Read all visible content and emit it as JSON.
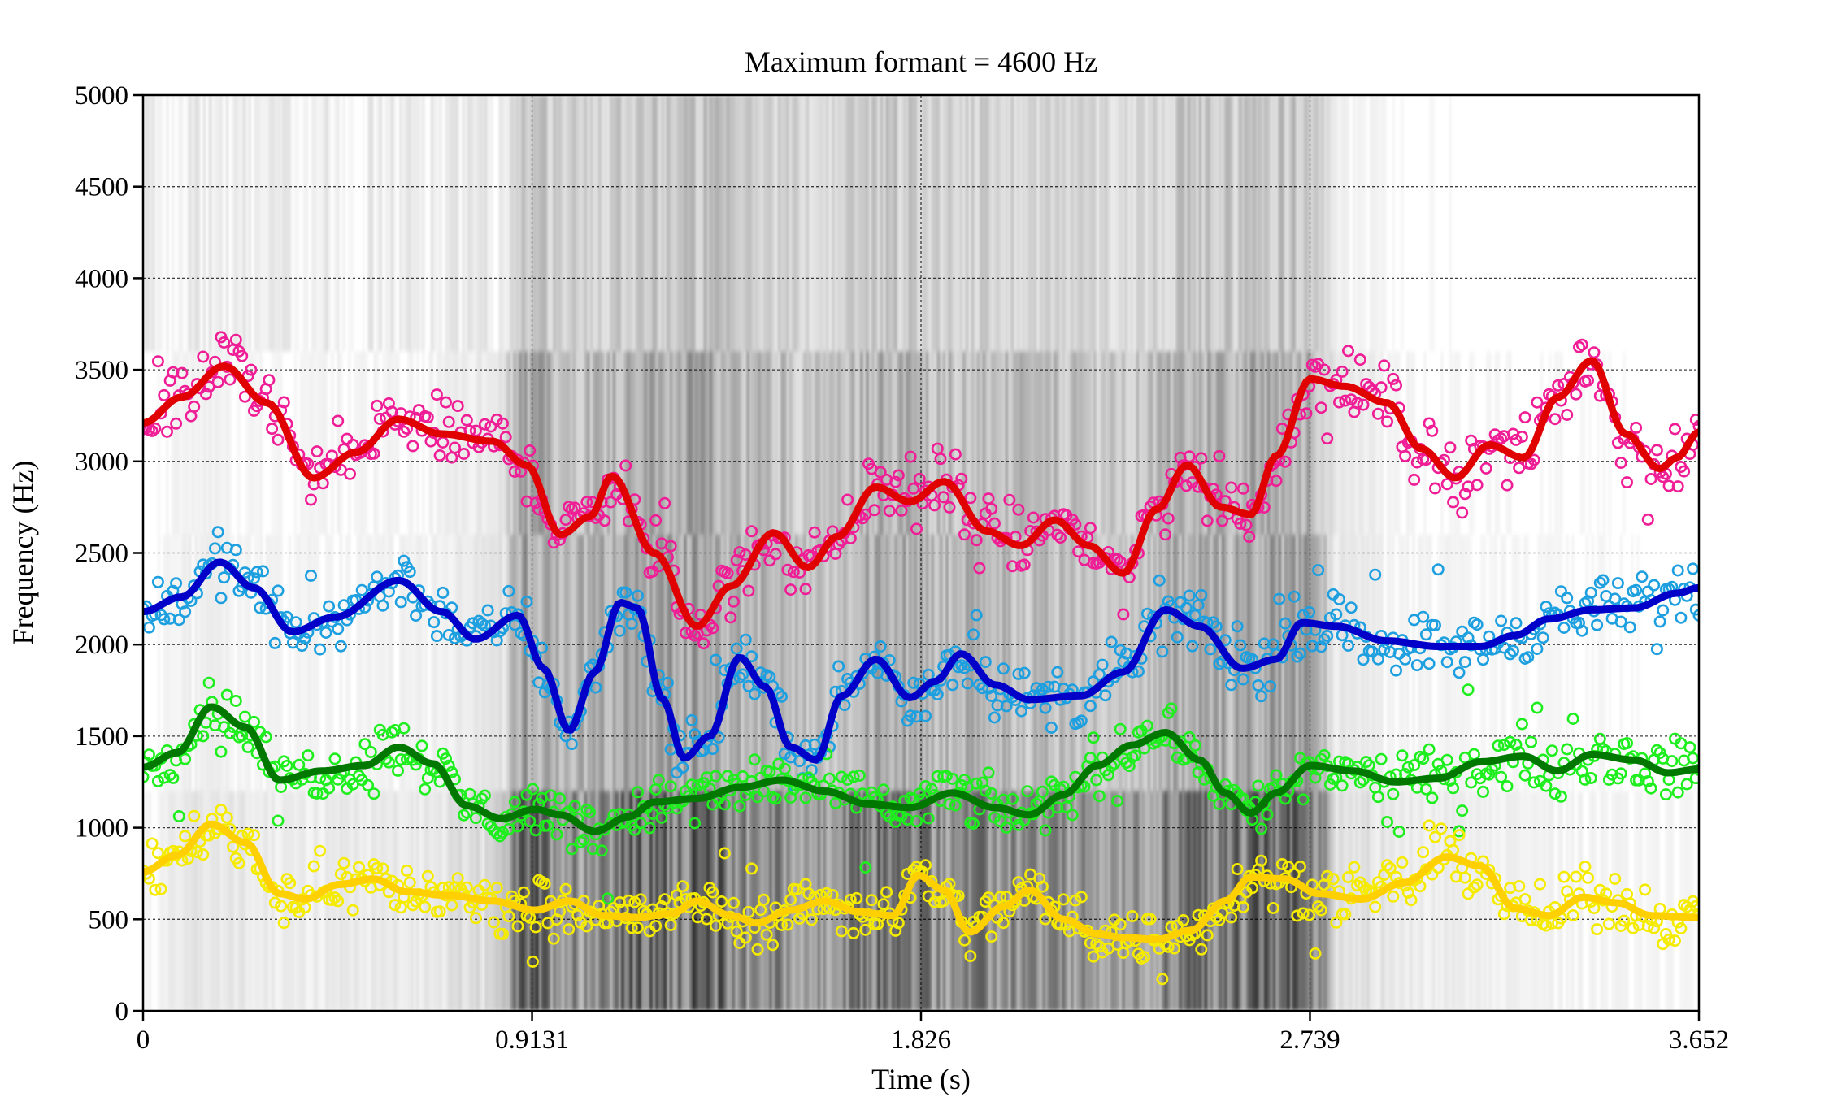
{
  "chart_data": {
    "type": "scatter",
    "title": "Maximum formant = 4600 Hz",
    "xlabel": "Time (s)",
    "ylabel": "Frequency (Hz)",
    "xlim": [
      0,
      3.652
    ],
    "ylim": [
      0,
      5000
    ],
    "xticks": [
      "0",
      "0.9131",
      "1.826",
      "2.739",
      "3.652"
    ],
    "xtick_values": [
      0,
      0.9131,
      1.826,
      2.739,
      3.652
    ],
    "yticks": [
      "0",
      "500",
      "1000",
      "1500",
      "2000",
      "2500",
      "3000",
      "3500",
      "4000",
      "4500",
      "5000"
    ],
    "ytick_values": [
      0,
      500,
      1000,
      1500,
      2000,
      2500,
      3000,
      3500,
      4000,
      4500,
      5000
    ],
    "grid": true,
    "background": "grayscale spectrogram",
    "series": [
      {
        "marker_color": "#f01e96",
        "line_color": "#e00000",
        "smooth": [
          [
            0,
            3210
          ],
          [
            0.09,
            3350
          ],
          [
            0.19,
            3520
          ],
          [
            0.29,
            3320
          ],
          [
            0.4,
            2910
          ],
          [
            0.5,
            3050
          ],
          [
            0.6,
            3230
          ],
          [
            0.7,
            3150
          ],
          [
            0.82,
            3110
          ],
          [
            0.9,
            2980
          ],
          [
            0.98,
            2600
          ],
          [
            1.05,
            2700
          ],
          [
            1.1,
            2920
          ],
          [
            1.2,
            2500
          ],
          [
            1.3,
            2100
          ],
          [
            1.38,
            2320
          ],
          [
            1.48,
            2610
          ],
          [
            1.56,
            2420
          ],
          [
            1.63,
            2590
          ],
          [
            1.72,
            2860
          ],
          [
            1.8,
            2780
          ],
          [
            1.88,
            2890
          ],
          [
            1.98,
            2620
          ],
          [
            2.06,
            2540
          ],
          [
            2.14,
            2680
          ],
          [
            2.22,
            2540
          ],
          [
            2.3,
            2390
          ],
          [
            2.38,
            2740
          ],
          [
            2.45,
            2980
          ],
          [
            2.53,
            2750
          ],
          [
            2.6,
            2710
          ],
          [
            2.66,
            3030
          ],
          [
            2.74,
            3450
          ],
          [
            2.82,
            3410
          ],
          [
            2.92,
            3320
          ],
          [
            3.0,
            3070
          ],
          [
            3.08,
            2910
          ],
          [
            3.16,
            3090
          ],
          [
            3.24,
            3020
          ],
          [
            3.32,
            3350
          ],
          [
            3.4,
            3550
          ],
          [
            3.48,
            3150
          ],
          [
            3.56,
            2960
          ],
          [
            3.6,
            3020
          ],
          [
            3.652,
            3160
          ]
        ],
        "scatter_spread": 160
      },
      {
        "marker_color": "#1ea0e0",
        "line_color": "#0000c8",
        "smooth": [
          [
            0,
            2180
          ],
          [
            0.09,
            2260
          ],
          [
            0.18,
            2450
          ],
          [
            0.26,
            2310
          ],
          [
            0.35,
            2070
          ],
          [
            0.45,
            2150
          ],
          [
            0.6,
            2350
          ],
          [
            0.7,
            2180
          ],
          [
            0.78,
            2030
          ],
          [
            0.88,
            2160
          ],
          [
            0.94,
            1870
          ],
          [
            1.0,
            1530
          ],
          [
            1.06,
            1850
          ],
          [
            1.12,
            2230
          ],
          [
            1.16,
            2200
          ],
          [
            1.22,
            1700
          ],
          [
            1.27,
            1380
          ],
          [
            1.33,
            1500
          ],
          [
            1.4,
            1930
          ],
          [
            1.46,
            1770
          ],
          [
            1.52,
            1440
          ],
          [
            1.58,
            1370
          ],
          [
            1.64,
            1720
          ],
          [
            1.72,
            1920
          ],
          [
            1.8,
            1710
          ],
          [
            1.86,
            1800
          ],
          [
            1.92,
            1950
          ],
          [
            2.0,
            1780
          ],
          [
            2.08,
            1700
          ],
          [
            2.2,
            1720
          ],
          [
            2.3,
            1850
          ],
          [
            2.4,
            2190
          ],
          [
            2.48,
            2100
          ],
          [
            2.58,
            1870
          ],
          [
            2.66,
            1920
          ],
          [
            2.72,
            2120
          ],
          [
            2.8,
            2100
          ],
          [
            2.92,
            2020
          ],
          [
            3.04,
            1990
          ],
          [
            3.14,
            1990
          ],
          [
            3.22,
            2050
          ],
          [
            3.3,
            2140
          ],
          [
            3.4,
            2190
          ],
          [
            3.5,
            2200
          ],
          [
            3.6,
            2280
          ],
          [
            3.652,
            2310
          ]
        ],
        "scatter_spread": 140
      },
      {
        "marker_color": "#1eee1e",
        "line_color": "#007800",
        "smooth": [
          [
            0,
            1330
          ],
          [
            0.08,
            1410
          ],
          [
            0.16,
            1660
          ],
          [
            0.24,
            1550
          ],
          [
            0.32,
            1260
          ],
          [
            0.42,
            1310
          ],
          [
            0.52,
            1340
          ],
          [
            0.6,
            1440
          ],
          [
            0.68,
            1350
          ],
          [
            0.76,
            1120
          ],
          [
            0.84,
            1050
          ],
          [
            0.92,
            1100
          ],
          [
            0.98,
            1070
          ],
          [
            1.06,
            980
          ],
          [
            1.14,
            1060
          ],
          [
            1.2,
            1140
          ],
          [
            1.3,
            1160
          ],
          [
            1.4,
            1220
          ],
          [
            1.5,
            1260
          ],
          [
            1.6,
            1200
          ],
          [
            1.7,
            1130
          ],
          [
            1.8,
            1110
          ],
          [
            1.9,
            1190
          ],
          [
            2.0,
            1110
          ],
          [
            2.08,
            1070
          ],
          [
            2.16,
            1180
          ],
          [
            2.24,
            1340
          ],
          [
            2.32,
            1450
          ],
          [
            2.4,
            1520
          ],
          [
            2.48,
            1370
          ],
          [
            2.54,
            1190
          ],
          [
            2.6,
            1080
          ],
          [
            2.66,
            1190
          ],
          [
            2.74,
            1340
          ],
          [
            2.84,
            1310
          ],
          [
            2.94,
            1250
          ],
          [
            3.04,
            1270
          ],
          [
            3.14,
            1360
          ],
          [
            3.24,
            1390
          ],
          [
            3.32,
            1310
          ],
          [
            3.4,
            1400
          ],
          [
            3.5,
            1370
          ],
          [
            3.58,
            1300
          ],
          [
            3.652,
            1320
          ]
        ],
        "scatter_spread": 130
      },
      {
        "marker_color": "#f5eb00",
        "line_color": "#ffd000",
        "smooth": [
          [
            0,
            760
          ],
          [
            0.08,
            850
          ],
          [
            0.16,
            1020
          ],
          [
            0.24,
            920
          ],
          [
            0.32,
            640
          ],
          [
            0.38,
            610
          ],
          [
            0.46,
            690
          ],
          [
            0.54,
            720
          ],
          [
            0.62,
            650
          ],
          [
            0.72,
            630
          ],
          [
            0.82,
            600
          ],
          [
            0.92,
            550
          ],
          [
            1.0,
            600
          ],
          [
            1.08,
            520
          ],
          [
            1.16,
            510
          ],
          [
            1.24,
            530
          ],
          [
            1.3,
            600
          ],
          [
            1.38,
            520
          ],
          [
            1.44,
            480
          ],
          [
            1.52,
            550
          ],
          [
            1.6,
            600
          ],
          [
            1.68,
            540
          ],
          [
            1.76,
            520
          ],
          [
            1.82,
            740
          ],
          [
            1.88,
            660
          ],
          [
            1.94,
            430
          ],
          [
            2.02,
            570
          ],
          [
            2.08,
            660
          ],
          [
            2.16,
            500
          ],
          [
            2.24,
            420
          ],
          [
            2.3,
            400
          ],
          [
            2.38,
            390
          ],
          [
            2.46,
            440
          ],
          [
            2.54,
            600
          ],
          [
            2.6,
            730
          ],
          [
            2.68,
            720
          ],
          [
            2.76,
            640
          ],
          [
            2.86,
            610
          ],
          [
            2.96,
            700
          ],
          [
            3.06,
            840
          ],
          [
            3.14,
            790
          ],
          [
            3.22,
            560
          ],
          [
            3.3,
            520
          ],
          [
            3.38,
            620
          ],
          [
            3.46,
            590
          ],
          [
            3.54,
            520
          ],
          [
            3.652,
            510
          ]
        ],
        "scatter_spread": 130
      }
    ]
  }
}
